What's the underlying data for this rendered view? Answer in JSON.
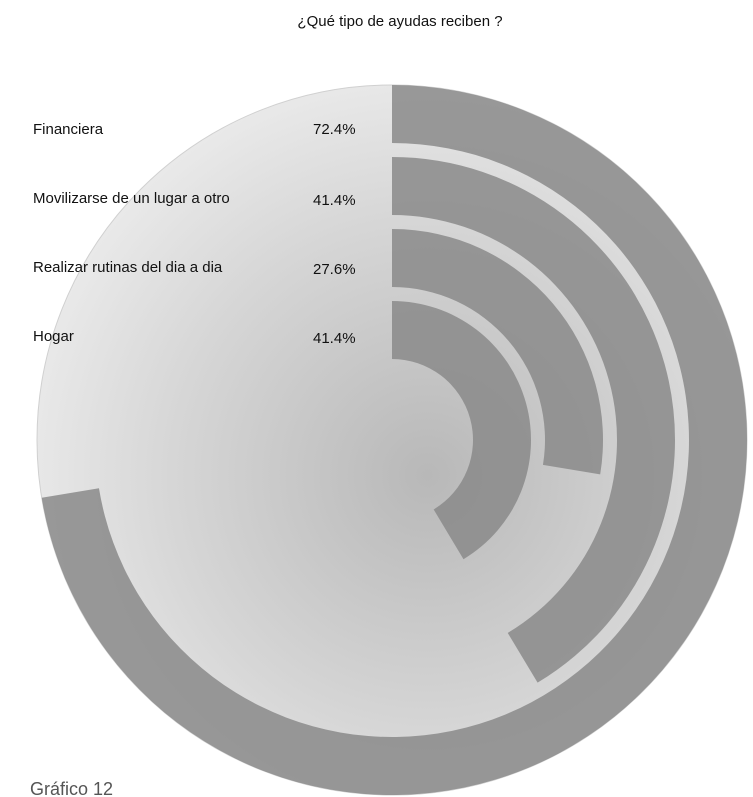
{
  "chart_data": {
    "type": "radial-bar",
    "title": "¿Qué tipo de ayudas reciben ?",
    "categories": [
      "Financiera",
      "Movilizarse de un lugar a otro",
      "Realizar rutinas del dia a dia",
      "Hogar"
    ],
    "values": [
      72.4,
      41.4,
      27.6,
      41.4
    ],
    "value_labels": [
      "72.4%",
      "41.4%",
      "27.6%",
      "41.4%"
    ],
    "color": "#8a8a8a",
    "caption": "Gráfico 12"
  }
}
